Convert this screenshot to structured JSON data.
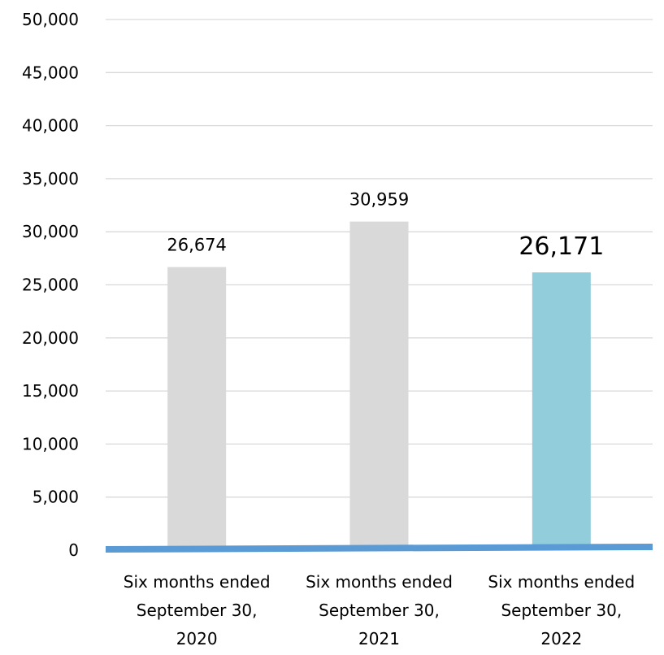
{
  "chart_data": {
    "type": "bar",
    "title": "",
    "xlabel": "",
    "ylabel": "",
    "categories": [
      [
        "Six months ended",
        "September 30,",
        "2020"
      ],
      [
        "Six months ended",
        "September 30,",
        "2021"
      ],
      [
        "Six months ended",
        "September 30,",
        "2022"
      ]
    ],
    "values": [
      26674,
      30959,
      26171
    ],
    "value_labels": [
      "26,674",
      "30,959",
      "26,171"
    ],
    "bar_colors": [
      "#d9d9d9",
      "#d9d9d9",
      "#92cddc"
    ],
    "ylim": [
      0,
      50000
    ],
    "yticks": [
      0,
      5000,
      10000,
      15000,
      20000,
      25000,
      30000,
      35000,
      40000,
      45000,
      50000
    ],
    "ytick_labels": [
      "0",
      "5,000",
      "10,000",
      "15,000",
      "20,000",
      "25,000",
      "30,000",
      "35,000",
      "40,000",
      "45,000",
      "50,000"
    ],
    "grid": true,
    "legend": "none",
    "gridline_color": "#d9d9d9",
    "baseline_color": "#5b9bd5"
  }
}
